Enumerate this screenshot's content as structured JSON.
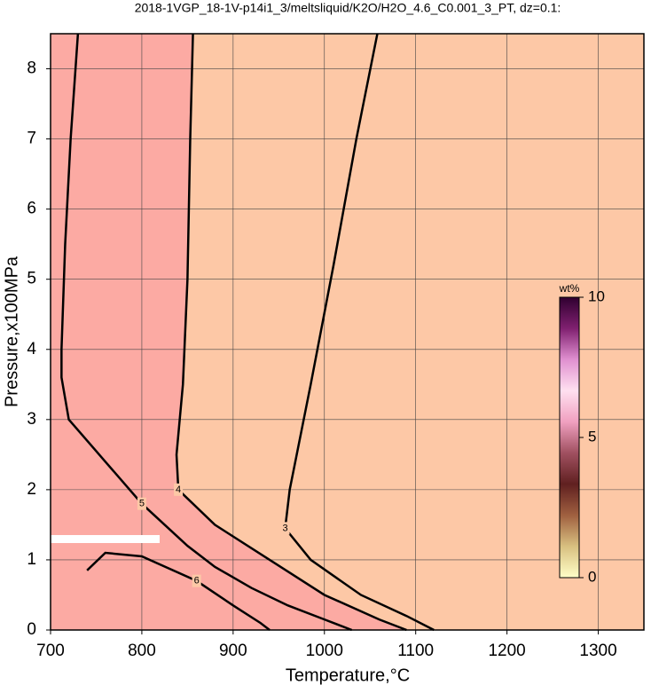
{
  "chart_data": {
    "type": "contour",
    "title": "2018-1VGP_18-1V-p14i1_3/meltsliquid/K2O/H2O_4.6_C0.001_3_PT, dz=0.1:",
    "x_label": "Temperature,°C",
    "y_label": "Pressure,x100MPa",
    "xlim": [
      700,
      1350
    ],
    "ylim": [
      0,
      8.5
    ],
    "xticks": [
      700,
      800,
      900,
      1000,
      1100,
      1200,
      1300
    ],
    "yticks": [
      0,
      1,
      2,
      3,
      4,
      5,
      6,
      7,
      8
    ],
    "grid": true,
    "background_color": "#fdc8a6",
    "fill_color": "#fcaaa3",
    "line_color": "#000000",
    "series": [
      {
        "name": "3",
        "x": [
          1058,
          1035,
          1010,
          985,
          962,
          957,
          985,
          1040,
          1090,
          1120
        ],
        "y": [
          8.5,
          7,
          5.2,
          3.5,
          2.0,
          1.45,
          1.0,
          0.5,
          0.2,
          0
        ]
      },
      {
        "name": "4",
        "x": [
          856,
          853,
          850,
          845,
          838,
          840,
          880,
          940,
          1000,
          1060,
          1090
        ],
        "y": [
          8.5,
          7,
          5,
          3.5,
          2.5,
          2.0,
          1.5,
          1.0,
          0.5,
          0.15,
          0
        ]
      },
      {
        "name": "5",
        "x": [
          730,
          722,
          716,
          712,
          712,
          720,
          760,
          800,
          850,
          880,
          920,
          960,
          1000,
          1030
        ],
        "y": [
          8.5,
          7,
          5.5,
          4.0,
          3.6,
          3.0,
          2.4,
          1.8,
          1.2,
          0.9,
          0.6,
          0.35,
          0.15,
          0
        ]
      },
      {
        "name": "6",
        "x": [
          740,
          760,
          800,
          860,
          900,
          930,
          940
        ],
        "y": [
          0.85,
          1.1,
          1.05,
          0.7,
          0.35,
          0.1,
          0
        ]
      }
    ],
    "colorbar": {
      "label": "wt%",
      "lim": [
        0,
        10
      ],
      "ticks": [
        0,
        5,
        10
      ],
      "colors": [
        "#ffffc8",
        "#d8c080",
        "#a06040",
        "#602020",
        "#a05060",
        "#f0a0c0",
        "#ffe0f0",
        "#e090d0",
        "#802070",
        "#300030"
      ]
    }
  }
}
